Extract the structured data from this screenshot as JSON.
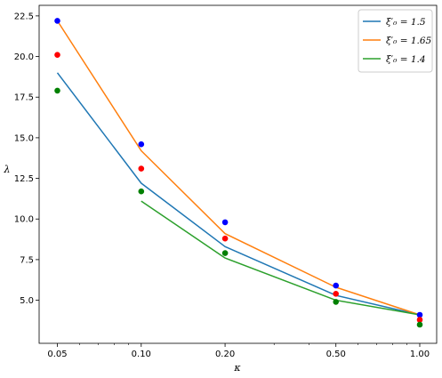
{
  "chart_data": {
    "type": "line",
    "xscale": "log",
    "xlabel": "κ",
    "ylabel": "λ",
    "xlim": [
      0.043,
      1.15
    ],
    "ylim": [
      2.35,
      23.15
    ],
    "xticks": [
      0.05,
      0.1,
      0.2,
      0.5,
      1.0
    ],
    "xtick_labels": [
      "0.05",
      "0.10",
      "0.20",
      "0.50",
      "1.00"
    ],
    "yticks": [
      5.0,
      7.5,
      10.0,
      12.5,
      15.0,
      17.5,
      20.0,
      22.5
    ],
    "ytick_labels": [
      "5.0",
      "7.5",
      "10.0",
      "12.5",
      "15.0",
      "17.5",
      "20.0",
      "22.5"
    ],
    "grid": false,
    "legend_position": "top-right",
    "series": [
      {
        "name": "ξ′₀ = 1.5",
        "color": "#1f77b4",
        "x": [
          0.05,
          0.1,
          0.2,
          0.5,
          1.0
        ],
        "y": [
          19.0,
          12.2,
          8.3,
          5.3,
          4.1
        ]
      },
      {
        "name": "ξ′₀ = 1.65",
        "color": "#ff7f0e",
        "x": [
          0.05,
          0.1,
          0.2,
          0.5,
          1.0
        ],
        "y": [
          22.2,
          14.2,
          9.1,
          5.8,
          4.1
        ]
      },
      {
        "name": "ξ′₀ = 1.4",
        "color": "#2ca02c",
        "x": [
          0.1,
          0.2,
          0.5,
          1.0
        ],
        "y": [
          11.1,
          7.6,
          5.0,
          4.1
        ]
      }
    ],
    "scatter": [
      {
        "color": "#0000ff",
        "x": [
          0.05,
          0.1,
          0.2,
          0.5,
          1.0
        ],
        "y": [
          22.2,
          14.6,
          9.8,
          5.9,
          4.1
        ]
      },
      {
        "color": "#ff0000",
        "x": [
          0.05,
          0.1,
          0.2,
          0.5,
          1.0
        ],
        "y": [
          20.1,
          13.1,
          8.8,
          5.4,
          3.8
        ]
      },
      {
        "color": "#008000",
        "x": [
          0.05,
          0.1,
          0.2,
          0.5,
          1.0
        ],
        "y": [
          17.9,
          11.7,
          7.9,
          4.9,
          3.5
        ]
      }
    ]
  }
}
